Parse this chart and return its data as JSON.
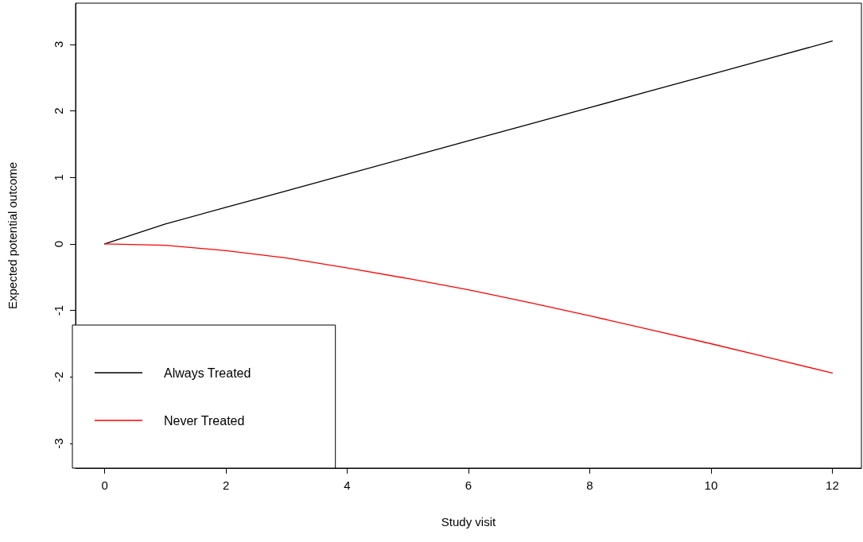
{
  "chart_data": {
    "type": "line",
    "xlabel": "Study visit",
    "ylabel": "Expected potential outcome",
    "x": [
      0,
      1,
      2,
      3,
      4,
      5,
      6,
      7,
      8,
      9,
      10,
      11,
      12
    ],
    "series": [
      {
        "name": "Always Treated",
        "color": "#000000",
        "values": [
          0,
          0.3,
          0.55,
          0.8,
          1.05,
          1.3,
          1.55,
          1.8,
          2.05,
          2.3,
          2.55,
          2.8,
          3.05
        ]
      },
      {
        "name": "Never Treated",
        "color": "#ff0000",
        "values": [
          0,
          -0.02,
          -0.1,
          -0.21,
          -0.36,
          -0.52,
          -0.69,
          -0.88,
          -1.08,
          -1.29,
          -1.5,
          -1.72,
          -1.94
        ]
      }
    ],
    "xlim": [
      -0.48,
      12.48
    ],
    "xticks": [
      0,
      2,
      4,
      6,
      8,
      10,
      12
    ],
    "ylim": [
      -3.37,
      3.62
    ],
    "yticks": [
      -3,
      -2,
      -1,
      0,
      1,
      2,
      3
    ],
    "grid": false,
    "legend": "bottom left",
    "marker": "none",
    "line_style": "solid"
  }
}
